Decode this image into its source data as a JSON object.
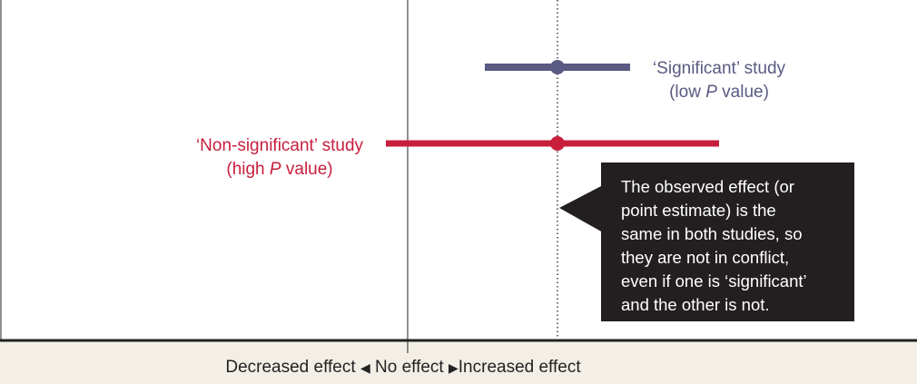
{
  "colors": {
    "significant": "#5a5a82",
    "non_significant": "#c81e3c",
    "callout_bg": "#231f20",
    "axis_band": "#f3efe7",
    "ink": "#222222"
  },
  "studies": {
    "significant": {
      "line1": "‘Significant’ study",
      "line2_pre": "(low ",
      "line2_italic": "P",
      "line2_post": " value)"
    },
    "non_significant": {
      "line1": "‘Non-significant’ study",
      "line2_pre": "(high ",
      "line2_italic": "P",
      "line2_post": " value)"
    }
  },
  "callout": {
    "lines": [
      "The observed effect (or",
      "point estimate) is the",
      "same in both studies, so",
      "they are not in conflict,",
      "even if one is ‘significant’",
      "and the other is not."
    ]
  },
  "axis": {
    "left_label": "Decreased effect",
    "left_arrow": "◀",
    "center_label": "No effect",
    "right_arrow": "▶",
    "right_label": "Increased effect"
  }
}
